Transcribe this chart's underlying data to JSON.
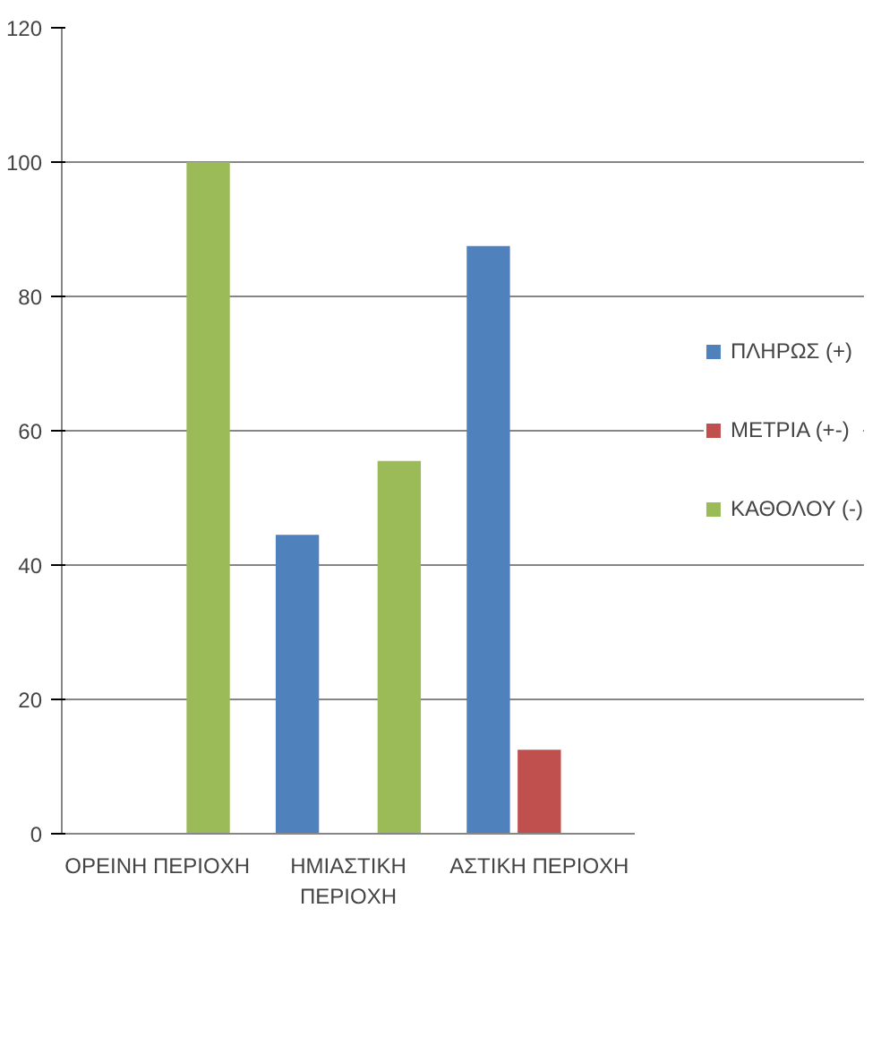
{
  "chart_data": {
    "type": "bar",
    "categories": [
      "ΟΡΕΙΝΗ ΠΕΡΙΟΧΗ",
      "ΗΜΙΑΣΤΙΚΗ ΠΕΡΙΟΧΗ",
      "ΑΣΤΙΚΗ ΠΕΡΙΟΧΗ"
    ],
    "series": [
      {
        "name": "ΠΛΗΡΩΣ (+)",
        "color": "#4f81bd",
        "values": [
          0,
          44.5,
          87.5
        ]
      },
      {
        "name": "ΜΕΤΡΙΑ (+-)",
        "color": "#c0504d",
        "values": [
          0,
          0,
          12.5
        ]
      },
      {
        "name": "ΚΑΘΟΛΟΥ (-)",
        "color": "#9bbb59",
        "values": [
          100,
          55.5,
          0
        ]
      }
    ],
    "ylim": [
      0,
      120
    ],
    "yticks": [
      0,
      20,
      40,
      60,
      80,
      100,
      120
    ],
    "grid": "y",
    "legend": "right"
  }
}
